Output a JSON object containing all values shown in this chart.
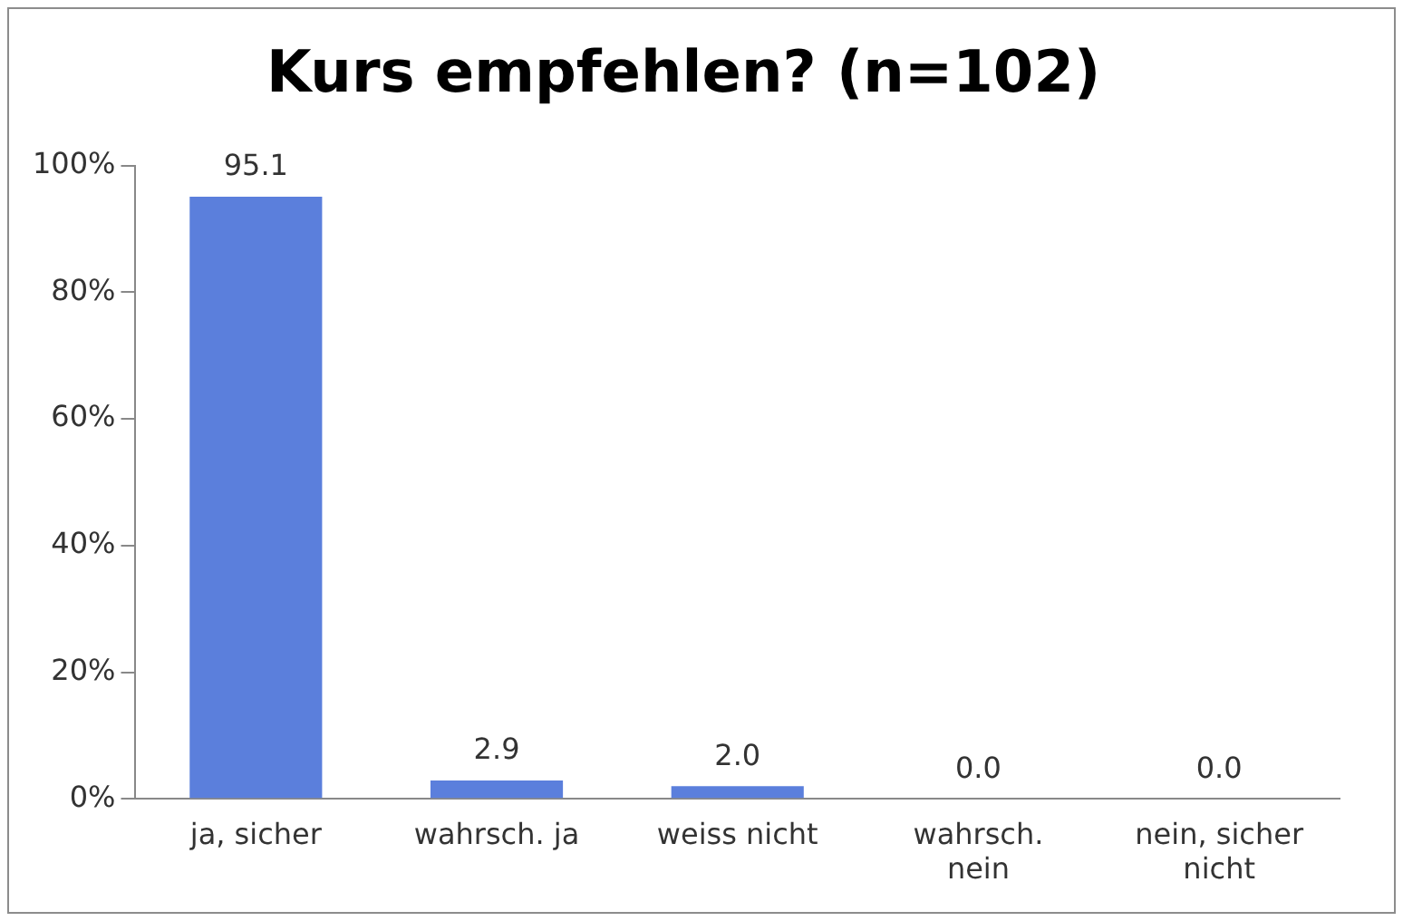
{
  "chart_data": {
    "type": "bar",
    "title": "Kurs empfehlen? (n=102)",
    "categories": [
      "ja, sicher",
      "wahrsch. ja",
      "weiss nicht",
      "wahrsch. nein",
      "nein, sicher nicht"
    ],
    "values": [
      95.1,
      2.9,
      2.0,
      0.0,
      0.0
    ],
    "value_labels": [
      "95.1",
      "2.9",
      "2.0",
      "0.0",
      "0.0"
    ],
    "color": "#5b7fdc",
    "ylim": [
      0,
      100
    ],
    "yticks": [
      {
        "value": 0,
        "label": "0%"
      },
      {
        "value": 20,
        "label": "20%"
      },
      {
        "value": 40,
        "label": "40%"
      },
      {
        "value": 60,
        "label": "60%"
      },
      {
        "value": 80,
        "label": "80%"
      },
      {
        "value": 100,
        "label": "100%"
      }
    ],
    "grid": false,
    "legend": false
  }
}
